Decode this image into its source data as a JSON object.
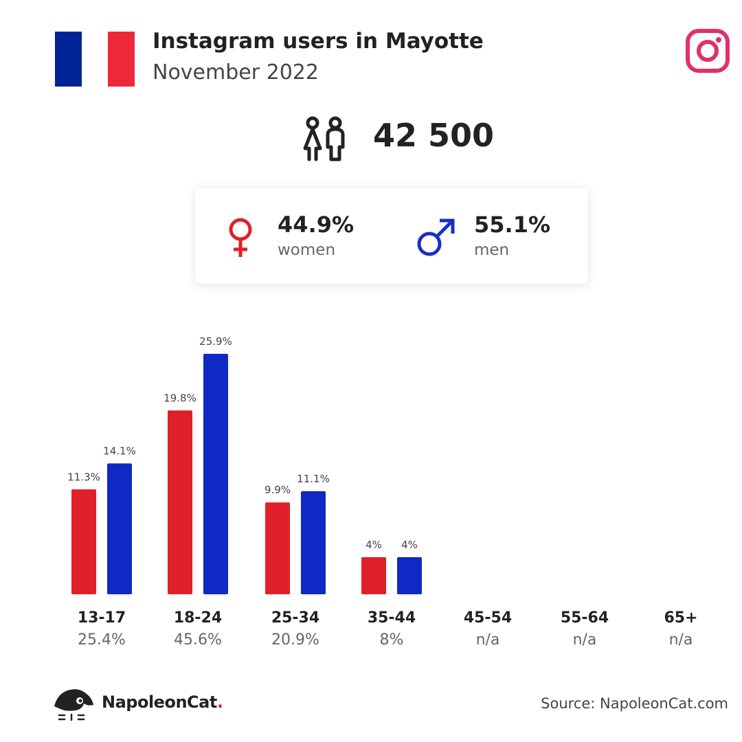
{
  "header": {
    "title": "Instagram users in Mayotte",
    "subtitle": "November 2022",
    "flag_colors": [
      "#002395",
      "#ffffff",
      "#ed2939"
    ],
    "brand_icon": "instagram-icon"
  },
  "total": {
    "icon": "users-icon",
    "value": "42 500"
  },
  "gender": {
    "women": {
      "icon": "female-symbol-icon",
      "percent": "44.9%",
      "label": "women",
      "color": "#e02028"
    },
    "men": {
      "icon": "male-symbol-icon",
      "percent": "55.1%",
      "label": "men",
      "color": "#1a2fc4"
    }
  },
  "chart_data": {
    "type": "bar",
    "categories": [
      "13-17",
      "18-24",
      "25-34",
      "35-44",
      "45-54",
      "55-64",
      "65+"
    ],
    "category_totals": [
      "25.4%",
      "45.6%",
      "20.9%",
      "8%",
      "n/a",
      "n/a",
      "n/a"
    ],
    "series": [
      {
        "values": [
          11.3,
          19.8,
          9.9,
          4,
          null,
          null,
          null
        ],
        "labels": [
          "11.3%",
          "19.8%",
          "9.9%",
          "4%",
          "",
          "",
          ""
        ],
        "color": "#e02028"
      },
      {
        "values": [
          14.1,
          25.9,
          11.1,
          4,
          null,
          null,
          null
        ],
        "labels": [
          "14.1%",
          "25.9%",
          "11.1%",
          "4%",
          "",
          "",
          ""
        ],
        "color": "#1028c4"
      }
    ],
    "grid": false
  },
  "footer": {
    "brand": "NapoleonCat",
    "brand_suffix": ".",
    "source": "Source: NapoleonCat.com"
  }
}
